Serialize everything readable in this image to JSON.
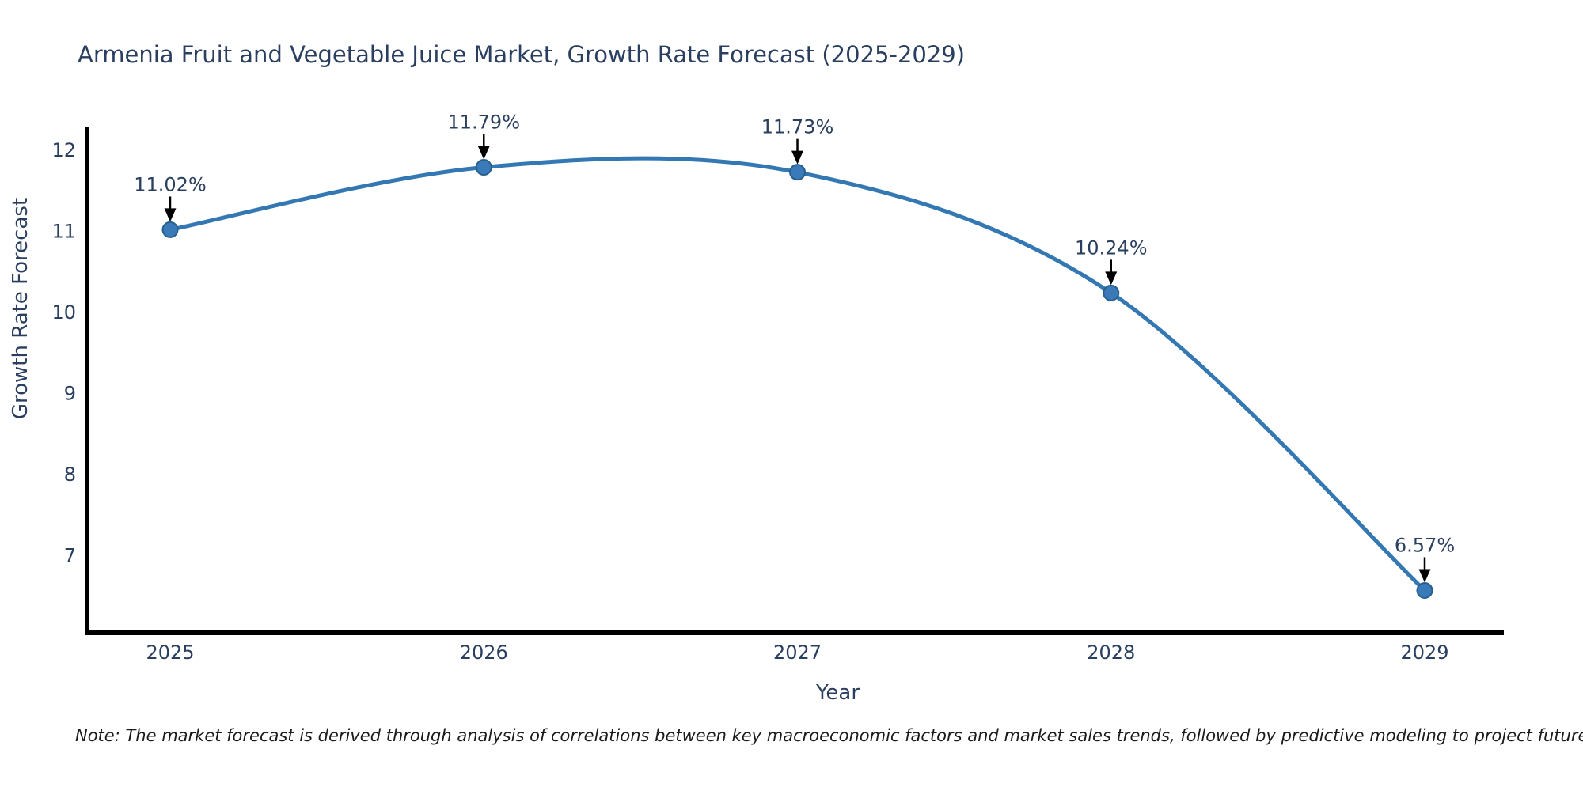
{
  "title": "Armenia Fruit and Vegetable Juice Market, Growth Rate Forecast (2025-2029)",
  "note": "Note: The market forecast is derived through analysis of correlations between key macroeconomic factors and market sales trends, followed by predictive modeling to project future sales",
  "chart_data": {
    "type": "line",
    "title": "Armenia Fruit and Vegetable Juice Market, Growth Rate Forecast (2025-2029)",
    "xlabel": "Year",
    "ylabel": "Growth Rate Forecast",
    "categories": [
      "2025",
      "2026",
      "2027",
      "2028",
      "2029"
    ],
    "x": [
      2025,
      2026,
      2027,
      2028,
      2029
    ],
    "series": [
      {
        "name": "Growth Rate Forecast",
        "values": [
          11.02,
          11.79,
          11.73,
          10.24,
          6.57
        ]
      }
    ],
    "point_labels": [
      "11.02%",
      "11.79%",
      "11.73%",
      "10.24%",
      "6.57%"
    ],
    "y_ticks": [
      7,
      8,
      9,
      10,
      11,
      12
    ],
    "ylim": [
      6.05,
      12.29
    ],
    "xlim": [
      2024.73,
      2029.25
    ],
    "line_shape": "spline",
    "markers": true,
    "grid": false,
    "legend_position": "none",
    "annotation_arrows": true,
    "colors": {
      "line": "#3377b3",
      "marker_fill": "#3b7ab8",
      "marker_outline": "#27608f",
      "axis_line": "#000000",
      "tick_text": "#2a3f5f",
      "axis_title_text": "#2a3f5f",
      "title_text": "#2a3f5f",
      "annotation_text": "#2a3f5f",
      "annotation_arrow": "#000000",
      "background": "#ffffff"
    }
  }
}
